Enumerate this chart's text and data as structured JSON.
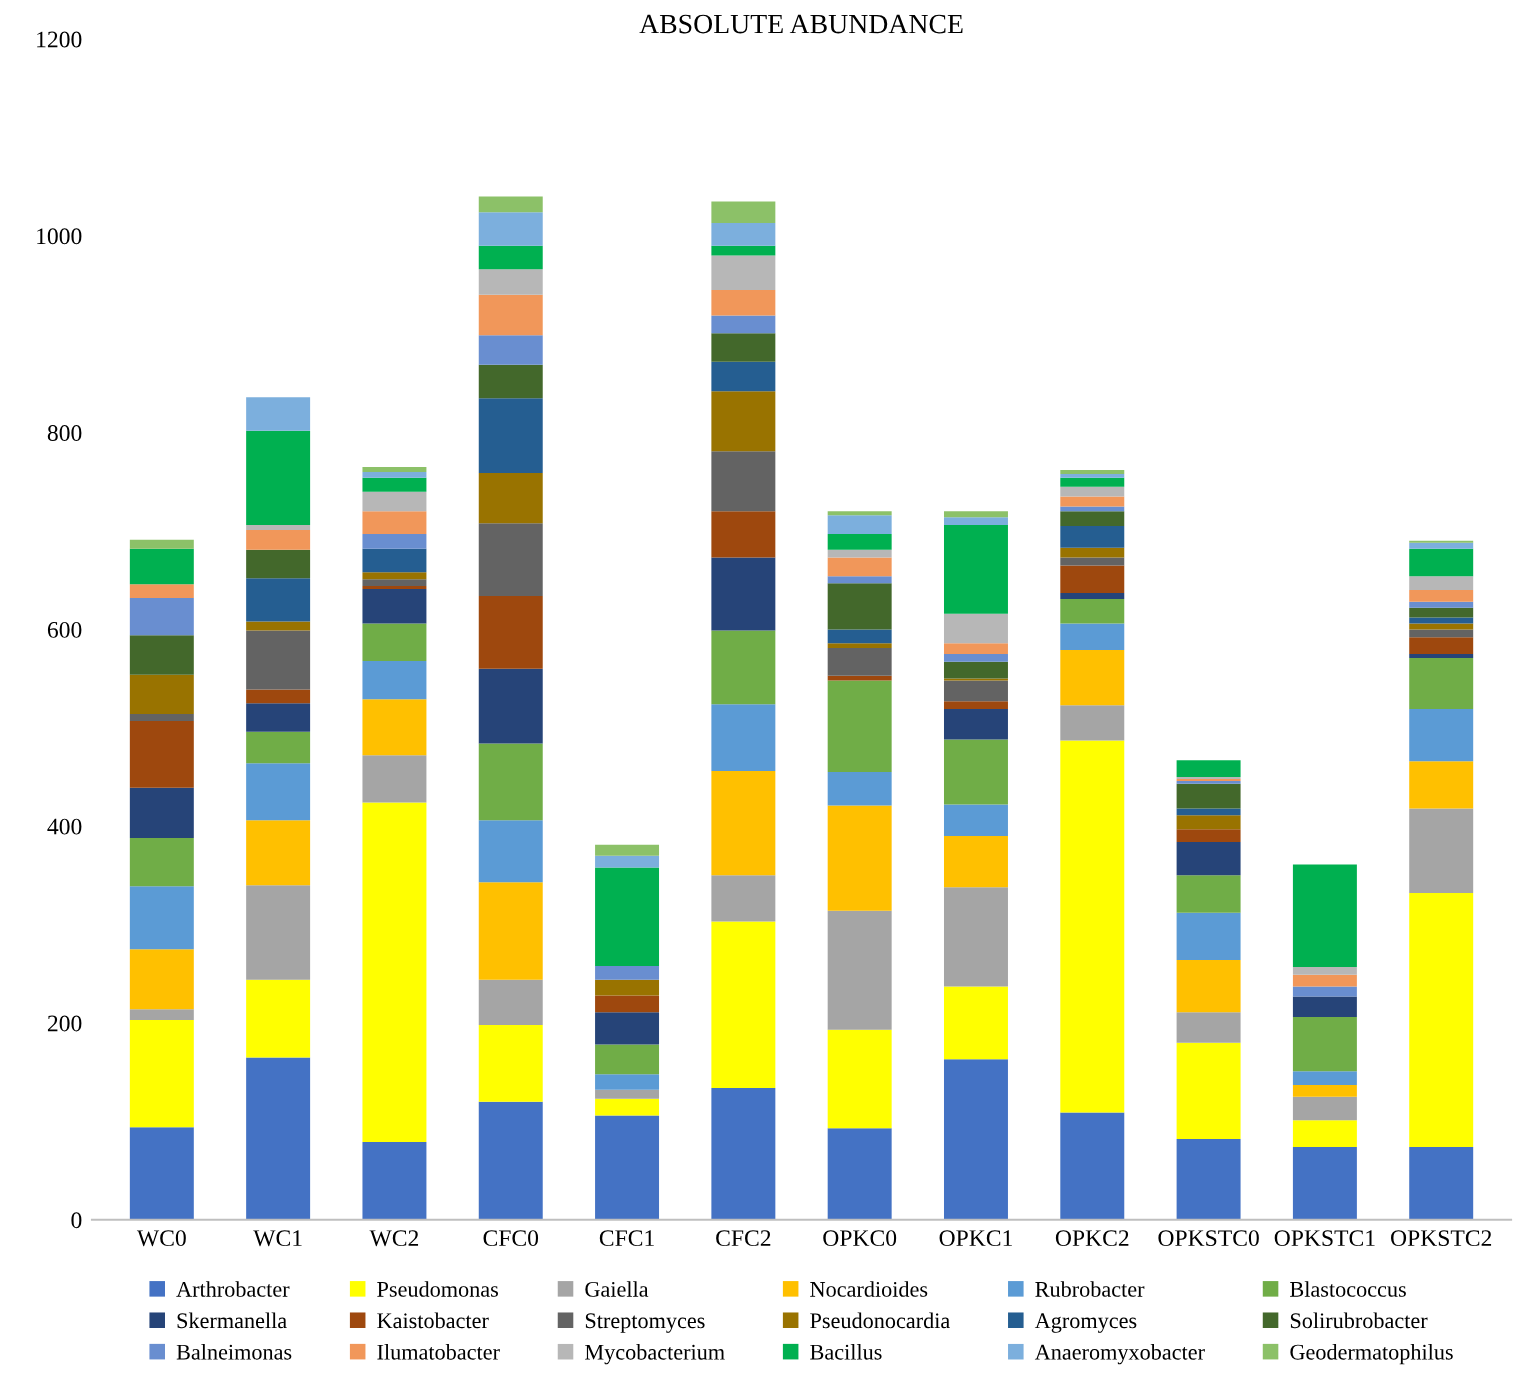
{
  "chart_data": {
    "type": "bar",
    "title": "ABSOLUTE ABUNDANCE",
    "stacked": true,
    "legend": "bottom",
    "grid": false,
    "categories": [
      "WC0",
      "WC1",
      "WC2",
      "CFC0",
      "CFC1",
      "CFC2",
      "OPKC0",
      "OPKC1",
      "OPKC2",
      "OPKSTC0",
      "OPKSTC1",
      "OPKSTC2"
    ],
    "ylim": [
      0,
      1200
    ],
    "yticks": [
      0,
      200,
      400,
      600,
      800,
      1000,
      1200
    ],
    "series": [
      {
        "name": "Arthrobacter",
        "color": "#4472c4",
        "values": [
          94,
          165,
          79,
          120,
          106,
          134,
          93,
          163,
          109,
          82,
          74,
          74
        ]
      },
      {
        "name": "Pseudomonas",
        "color": "#ffff00",
        "values": [
          109,
          79,
          345,
          78,
          17,
          169,
          100,
          74,
          378,
          98,
          27,
          258
        ]
      },
      {
        "name": "Gaiella",
        "color": "#a5a5a5",
        "values": [
          11,
          96,
          48,
          46,
          9,
          47,
          121,
          101,
          36,
          31,
          24,
          86
        ]
      },
      {
        "name": "Nocardioides",
        "color": "#ffc000",
        "values": [
          61,
          66,
          57,
          99,
          0,
          106,
          107,
          52,
          56,
          53,
          12,
          48
        ]
      },
      {
        "name": "Rubrobacter",
        "color": "#5b9bd5",
        "values": [
          64,
          58,
          39,
          63,
          16,
          68,
          34,
          32,
          27,
          48,
          14,
          53
        ]
      },
      {
        "name": "Blastococcus",
        "color": "#70ad47",
        "values": [
          49,
          32,
          38,
          78,
          30,
          75,
          93,
          66,
          25,
          38,
          55,
          52
        ]
      },
      {
        "name": "Skermanella",
        "color": "#264478",
        "values": [
          51,
          29,
          35,
          76,
          33,
          74,
          0,
          31,
          6,
          34,
          21,
          4
        ]
      },
      {
        "name": "Kaistobacter",
        "color": "#9e480e",
        "values": [
          68,
          14,
          3,
          74,
          17,
          47,
          5,
          8,
          28,
          13,
          0,
          17
        ]
      },
      {
        "name": "Streptomyces",
        "color": "#636363",
        "values": [
          7,
          60,
          7,
          74,
          0,
          61,
          28,
          21,
          8,
          0,
          0,
          8
        ]
      },
      {
        "name": "Pseudonocardia",
        "color": "#997300",
        "values": [
          40,
          9,
          7,
          51,
          16,
          61,
          5,
          2,
          10,
          14,
          0,
          6
        ]
      },
      {
        "name": "Agromyces",
        "color": "#255e91",
        "values": [
          0,
          44,
          24,
          76,
          0,
          30,
          14,
          0,
          22,
          7,
          0,
          6
        ]
      },
      {
        "name": "Solirubrobacter",
        "color": "#43682b",
        "values": [
          40,
          29,
          0,
          34,
          0,
          29,
          47,
          17,
          15,
          25,
          0,
          10
        ]
      },
      {
        "name": "Balneimonas",
        "color": "#698ed0",
        "values": [
          38,
          0,
          15,
          30,
          14,
          18,
          7,
          8,
          5,
          3,
          10,
          6
        ]
      },
      {
        "name": "Ilumatobacter",
        "color": "#f1975a",
        "values": [
          14,
          20,
          23,
          41,
          0,
          26,
          19,
          11,
          10,
          2,
          12,
          12
        ]
      },
      {
        "name": "Mycobacterium",
        "color": "#b7b7b7",
        "values": [
          0,
          5,
          20,
          26,
          0,
          35,
          8,
          30,
          10,
          2,
          8,
          14
        ]
      },
      {
        "name": "Bacillus",
        "color": "#00b050",
        "values": [
          36,
          96,
          14,
          24,
          100,
          10,
          16,
          90,
          9,
          17,
          104,
          28
        ]
      },
      {
        "name": "Anaeromyxobacter",
        "color": "#7cafdd",
        "values": [
          0,
          34,
          6,
          34,
          12,
          23,
          19,
          8,
          4,
          0,
          0,
          6
        ]
      },
      {
        "name": "Geodermatophilus",
        "color": "#8cc168",
        "values": [
          9,
          0,
          5,
          16,
          11,
          22,
          4,
          6,
          4,
          0,
          0,
          2
        ]
      }
    ]
  }
}
